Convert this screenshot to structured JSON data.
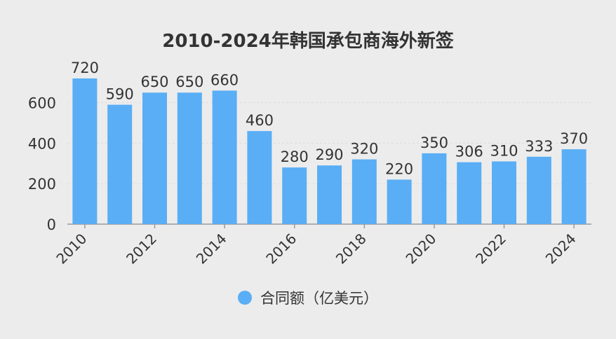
{
  "chart_data": {
    "type": "bar",
    "title": "2010-2024年韩国承包商海外新签",
    "categories": [
      "2010",
      "2011",
      "2012",
      "2013",
      "2014",
      "2015",
      "2016",
      "2017",
      "2018",
      "2019",
      "2020",
      "2021",
      "2022",
      "2023",
      "2024"
    ],
    "series": [
      {
        "name": "合同额（亿美元）",
        "values": [
          720,
          590,
          650,
          650,
          660,
          460,
          280,
          290,
          320,
          220,
          350,
          306,
          310,
          333,
          370
        ]
      }
    ],
    "x_tick_labels": [
      "2010",
      "2012",
      "2014",
      "2016",
      "2018",
      "2020",
      "2022",
      "2024"
    ],
    "y_ticks": [
      0,
      200,
      400,
      600
    ],
    "ylim": [
      0,
      720
    ],
    "grid": true,
    "legend_position": "bottom",
    "data_labels": true
  },
  "colors": {
    "bar": "#5aaef5",
    "background": "#ececec",
    "text": "#333333",
    "grid": "#dddddd",
    "axis": "#999999"
  }
}
